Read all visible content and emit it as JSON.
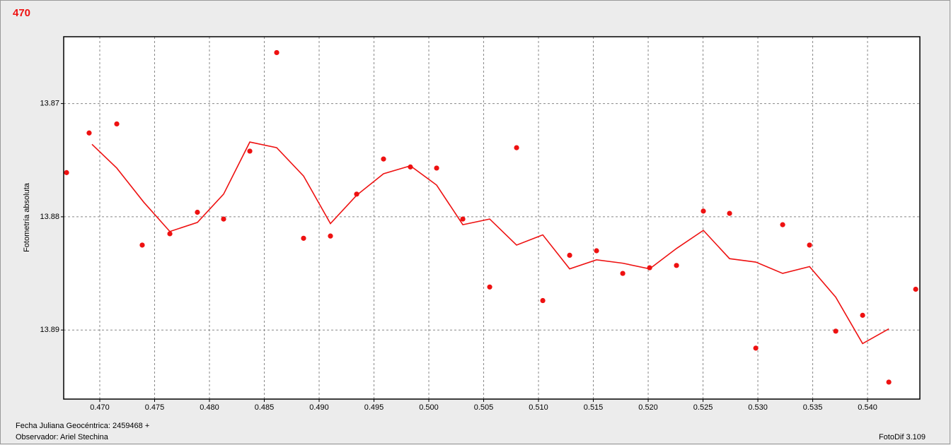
{
  "chart_data": {
    "type": "scatter",
    "title": "470",
    "ylabel": "Fotometría absoluta",
    "footer_left": [
      "Fecha Juliana Geocéntrica: 2459468 +",
      "Observador: Ariel Stechina"
    ],
    "footer_right": "FotoDif 3.109",
    "xlim": [
      0.46671,
      0.54477
    ],
    "ylim": [
      13.8641,
      13.8961
    ],
    "invert_y": true,
    "grid": true,
    "xticks": [
      {
        "value": 0.47,
        "label": "0.470"
      },
      {
        "value": 0.475,
        "label": "0.475"
      },
      {
        "value": 0.48,
        "label": "0.480"
      },
      {
        "value": 0.485,
        "label": "0.485"
      },
      {
        "value": 0.49,
        "label": "0.490"
      },
      {
        "value": 0.495,
        "label": "0.495"
      },
      {
        "value": 0.5,
        "label": "0.500"
      },
      {
        "value": 0.505,
        "label": "0.505"
      },
      {
        "value": 0.51,
        "label": "0.510"
      },
      {
        "value": 0.515,
        "label": "0.515"
      },
      {
        "value": 0.52,
        "label": "0.520"
      },
      {
        "value": 0.525,
        "label": "0.525"
      },
      {
        "value": 0.53,
        "label": "0.530"
      },
      {
        "value": 0.535,
        "label": "0.535"
      },
      {
        "value": 0.54,
        "label": "0.540"
      }
    ],
    "yticks": [
      13.87,
      13.88,
      13.89
    ],
    "series": [
      {
        "type": "scatter",
        "color": "#ee1111",
        "x": [
          0.46697,
          0.46903,
          0.47155,
          0.47387,
          0.47639,
          0.4789,
          0.48129,
          0.48368,
          0.48613,
          0.48858,
          0.49103,
          0.49342,
          0.49587,
          0.49832,
          0.50071,
          0.5031,
          0.50555,
          0.508,
          0.51039,
          0.51284,
          0.51529,
          0.51768,
          0.52013,
          0.52258,
          0.52503,
          0.52742,
          0.52981,
          0.53226,
          0.53471,
          0.5371,
          0.53955,
          0.54194,
          0.54439
        ],
        "values": [
          13.8761,
          13.8726,
          13.8718,
          13.8825,
          13.8815,
          13.8796,
          13.8802,
          13.8742,
          13.8655,
          13.8819,
          13.8817,
          13.878,
          13.8749,
          13.8756,
          13.8757,
          13.8802,
          13.8862,
          13.8739,
          13.8874,
          13.8834,
          13.883,
          13.885,
          13.8845,
          13.8843,
          13.8795,
          13.8797,
          13.8916,
          13.8807,
          13.8825,
          13.8901,
          13.8887,
          13.8946,
          13.8864
        ]
      },
      {
        "type": "line",
        "color": "#ee1111",
        "x": [
          0.46929,
          0.47155,
          0.474,
          0.47639,
          0.4789,
          0.48129,
          0.48368,
          0.48613,
          0.48858,
          0.49103,
          0.49342,
          0.49587,
          0.49832,
          0.50071,
          0.5031,
          0.50555,
          0.508,
          0.51039,
          0.51284,
          0.51529,
          0.51768,
          0.52013,
          0.52258,
          0.52503,
          0.52742,
          0.52981,
          0.53226,
          0.53471,
          0.5371,
          0.53955,
          0.54194
        ],
        "values": [
          13.8736,
          13.8757,
          13.8787,
          13.8813,
          13.8805,
          13.878,
          13.8734,
          13.8739,
          13.8764,
          13.8806,
          13.8781,
          13.8762,
          13.8755,
          13.8772,
          13.8807,
          13.8802,
          13.8825,
          13.8816,
          13.8846,
          13.8838,
          13.8841,
          13.8846,
          13.8828,
          13.8812,
          13.8837,
          13.884,
          13.885,
          13.8844,
          13.8871,
          13.8912,
          13.8899
        ]
      }
    ]
  }
}
